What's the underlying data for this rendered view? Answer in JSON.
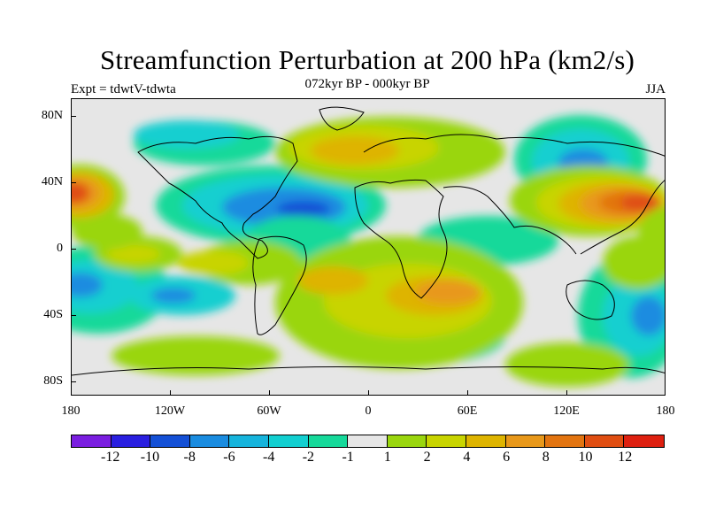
{
  "title": "Streamfunction Perturbation at 200 hPa (km2/s)",
  "subtitle_left": "Expt = tdwtV-tdwta",
  "subtitle_center": "072kyr BP - 000kyr BP",
  "subtitle_right": "JJA",
  "axes": {
    "y_ticks": [
      "80N",
      "40N",
      "0",
      "40S",
      "80S"
    ],
    "x_ticks": [
      "180",
      "120W",
      "60W",
      "0",
      "60E",
      "120E",
      "180"
    ]
  },
  "colorbar": {
    "colors": [
      "#7a1ee0",
      "#2a1fe0",
      "#1450d6",
      "#1a8ce0",
      "#16b4dc",
      "#12cfd0",
      "#16d99a",
      "#e6e6e6",
      "#9ad60e",
      "#c8d400",
      "#deb400",
      "#e8981a",
      "#e27410",
      "#e04e12",
      "#de2010"
    ],
    "labels": [
      "-12",
      "-10",
      "-8",
      "-6",
      "-4",
      "-2",
      "-1",
      "1",
      "2",
      "4",
      "6",
      "8",
      "10",
      "12"
    ]
  }
}
